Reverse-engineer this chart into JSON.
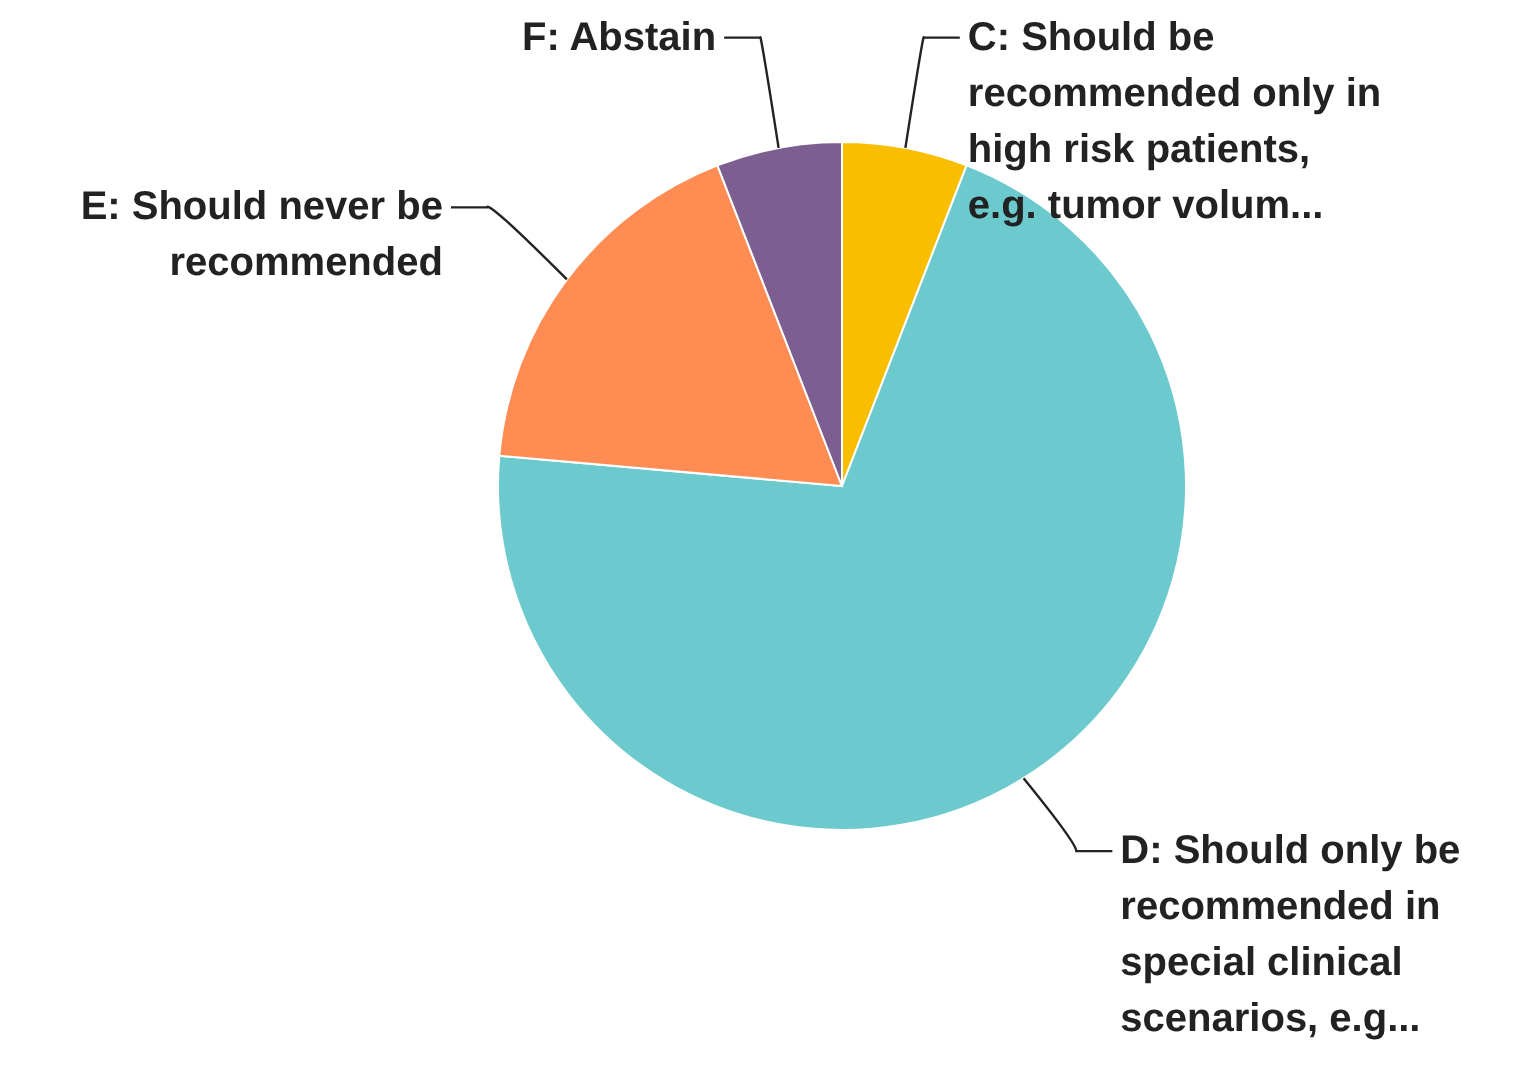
{
  "chart_data": {
    "type": "pie",
    "categories": [
      "C: Should be recommended only in high risk patients, e.g. tumor volum...",
      "D: Should only be recommended in special clinical scenarios, e.g...",
      "E: Should never be recommended",
      "F: Abstain"
    ],
    "values": [
      5.9,
      70.5,
      17.7,
      5.9
    ],
    "colors": [
      "#f9be00",
      "#6cc9cd",
      "#ff8c53",
      "#7c5e91"
    ]
  }
}
